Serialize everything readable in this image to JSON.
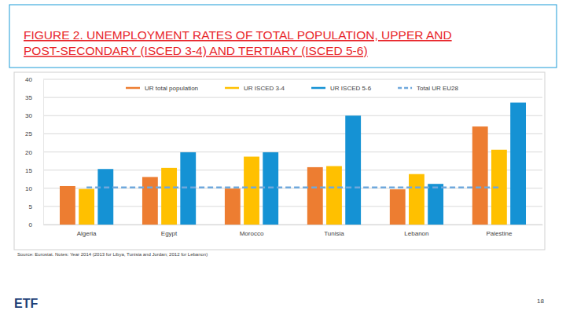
{
  "chart_data": {
    "type": "bar",
    "title": "FIGURE 2. UNEMPLOYMENT RATES OF TOTAL POPULATION, UPPER AND POST-SECONDARY (ISCED 3-4) AND TERTIARY (ISCED 5-6)",
    "categories": [
      "Algeria",
      "Egypt",
      "Morocco",
      "Tunisia",
      "Lebanon",
      "Palestine"
    ],
    "series": [
      {
        "name": "UR total population",
        "color": "#ed7d31",
        "values": [
          10.6,
          13.1,
          9.9,
          15.8,
          9.7,
          27.0
        ]
      },
      {
        "name": "UR ISCED 3-4",
        "color": "#ffc000",
        "values": [
          9.8,
          15.6,
          18.7,
          16.1,
          13.9,
          20.6
        ]
      },
      {
        "name": "UR ISCED 5-6",
        "color": "#1592d4",
        "values": [
          15.3,
          19.9,
          19.9,
          30.0,
          11.2,
          33.6
        ]
      },
      {
        "name": "Total UR EU28",
        "type": "line",
        "line_style": "dashed",
        "color": "#6fa8dc",
        "values": [
          10.2,
          10.2,
          10.2,
          10.2,
          10.2,
          10.2
        ]
      }
    ],
    "ylim": [
      0,
      40
    ],
    "yticks": [
      0,
      5,
      10,
      15,
      20,
      25,
      30,
      35,
      40
    ],
    "grid": true,
    "legend": "top",
    "annotations": [
      "Source: Eurostat. Notes: Year 2014 (2013 for Libya, Tunisia and Jordan; 2012 for Lebanon)",
      "18",
      "ETF"
    ]
  }
}
